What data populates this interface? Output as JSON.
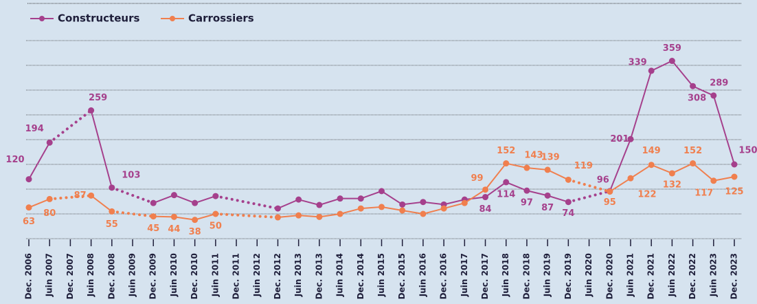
{
  "chart_data": {
    "type": "line",
    "categories": [
      "Dec. 2006",
      "Juin 2007",
      "Dec. 2007",
      "Juin 2008",
      "Dec. 2008",
      "Juin 2009",
      "Dec. 2009",
      "Juin 2010",
      "Dec. 2010",
      "Juin 2011",
      "Dec. 2011",
      "Juin 2012",
      "Dec. 2012",
      "Juin 2013",
      "Dec. 2013",
      "Juin 2014",
      "Dec. 2014",
      "Juin 2015",
      "Dec. 2015",
      "Juin 2016",
      "Dec. 2016",
      "Juin 2017",
      "Dec. 2017",
      "Juin 2018",
      "Dec. 2018",
      "Juin 2019",
      "Dec. 2019",
      "Juin 2020",
      "Dec. 2020",
      "Juin 2021",
      "Dec. 2021",
      "Juin 2022",
      "Dec. 2022",
      "Juin 2023",
      "Dec. 2023"
    ],
    "series": [
      {
        "name": "Constructeurs",
        "color": "#a5408c",
        "values": [
          120,
          194,
          null,
          259,
          103,
          null,
          72,
          88,
          72,
          86,
          null,
          null,
          61,
          79,
          68,
          81,
          81,
          96,
          69,
          74,
          69,
          79,
          84,
          114,
          97,
          87,
          74,
          null,
          96,
          201,
          339,
          359,
          308,
          289,
          150
        ],
        "value_labels": [
          "120",
          "194",
          null,
          "259",
          "103",
          null,
          null,
          null,
          null,
          null,
          null,
          null,
          null,
          null,
          null,
          null,
          null,
          null,
          null,
          null,
          null,
          null,
          "84",
          "114",
          "97",
          "87",
          "74",
          null,
          "96",
          "201",
          "339",
          "359",
          "308",
          "289",
          "150"
        ]
      },
      {
        "name": "Carrossiers",
        "color": "#f07f4e",
        "values": [
          63,
          80,
          null,
          87,
          55,
          null,
          45,
          44,
          38,
          50,
          null,
          null,
          43,
          47,
          44,
          50,
          61,
          64,
          57,
          50,
          61,
          72,
          99,
          152,
          143,
          139,
          119,
          null,
          95,
          122,
          149,
          132,
          152,
          117,
          125
        ],
        "value_labels": [
          "63",
          "80",
          null,
          "87",
          "55",
          null,
          "45",
          "44",
          "38",
          "50",
          null,
          null,
          null,
          null,
          null,
          null,
          null,
          null,
          null,
          null,
          null,
          null,
          "99",
          "152",
          "143",
          "139",
          "119",
          null,
          "95",
          "122",
          "149",
          "132",
          "152",
          "117",
          "125"
        ]
      }
    ],
    "ylim": [
      0,
      400
    ],
    "yticks": [
      0,
      50,
      100,
      150,
      200,
      250,
      300,
      350,
      400
    ],
    "ytick_labels": false,
    "grid": true,
    "legend": "top-left"
  }
}
